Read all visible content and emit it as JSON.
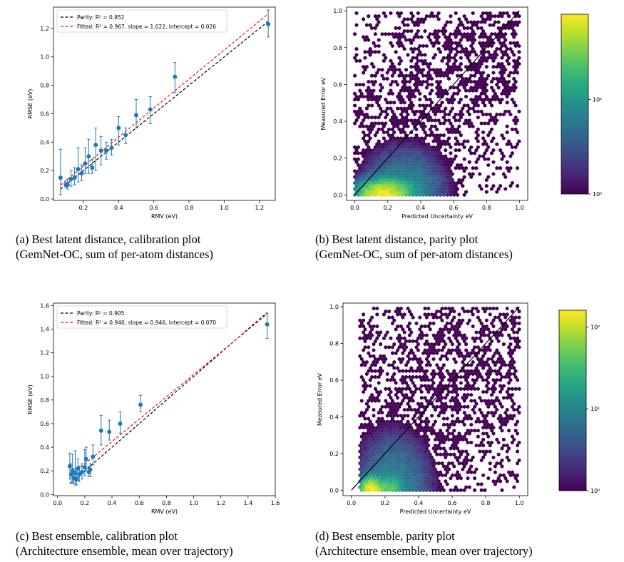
{
  "chart_data": [
    {
      "id": "a",
      "type": "scatter",
      "subtype": "calibration-errorbar",
      "xlabel": "RMV (eV)",
      "ylabel": "RMSE (eV)",
      "xlim": [
        0.03,
        1.29
      ],
      "ylim": [
        -0.01,
        1.35
      ],
      "xticks": [
        0.2,
        0.4,
        0.6,
        0.8,
        1.0,
        1.2
      ],
      "xtick_labels": [
        "0.2",
        "0.4",
        "0.6",
        "0.8",
        "1.0",
        "1.2"
      ],
      "yticks": [
        0.0,
        0.2,
        0.4,
        0.6,
        0.8,
        1.0,
        1.2
      ],
      "ytick_labels": [
        "0.0",
        "0.2",
        "0.4",
        "0.6",
        "0.8",
        "1.0",
        "1.2"
      ],
      "legend_position": "top-left",
      "legend": [
        {
          "label": "Parity: R² = 0.952",
          "color": "#000000",
          "style": "dashed"
        },
        {
          "label": "Fitted: R² = 0.967, slope = 1.022, intercept = 0.026",
          "color": "#e41a1c",
          "style": "dashed"
        }
      ],
      "lines": {
        "parity": {
          "slope": 1.0,
          "intercept": 0.0
        },
        "fitted": {
          "slope": 1.022,
          "intercept": 0.026
        }
      },
      "points": [
        {
          "x": 0.07,
          "y": 0.15,
          "lo": 0.03,
          "hi": 0.35
        },
        {
          "x": 0.1,
          "y": 0.1,
          "lo": 0.08,
          "hi": 0.12
        },
        {
          "x": 0.11,
          "y": 0.1,
          "lo": 0.07,
          "hi": 0.14
        },
        {
          "x": 0.13,
          "y": 0.14,
          "lo": 0.09,
          "hi": 0.2
        },
        {
          "x": 0.15,
          "y": 0.15,
          "lo": 0.1,
          "hi": 0.22
        },
        {
          "x": 0.17,
          "y": 0.21,
          "lo": 0.12,
          "hi": 0.36
        },
        {
          "x": 0.19,
          "y": 0.18,
          "lo": 0.13,
          "hi": 0.24
        },
        {
          "x": 0.21,
          "y": 0.25,
          "lo": 0.18,
          "hi": 0.36
        },
        {
          "x": 0.23,
          "y": 0.3,
          "lo": 0.18,
          "hi": 0.42
        },
        {
          "x": 0.25,
          "y": 0.22,
          "lo": 0.18,
          "hi": 0.28
        },
        {
          "x": 0.27,
          "y": 0.38,
          "lo": 0.2,
          "hi": 0.5
        },
        {
          "x": 0.3,
          "y": 0.34,
          "lo": 0.24,
          "hi": 0.44
        },
        {
          "x": 0.33,
          "y": 0.34,
          "lo": 0.28,
          "hi": 0.4
        },
        {
          "x": 0.36,
          "y": 0.36,
          "lo": 0.31,
          "hi": 0.42
        },
        {
          "x": 0.4,
          "y": 0.5,
          "lo": 0.38,
          "hi": 0.58
        },
        {
          "x": 0.44,
          "y": 0.45,
          "lo": 0.39,
          "hi": 0.5
        },
        {
          "x": 0.5,
          "y": 0.59,
          "lo": 0.5,
          "hi": 0.7
        },
        {
          "x": 0.58,
          "y": 0.63,
          "lo": 0.53,
          "hi": 0.72
        },
        {
          "x": 0.72,
          "y": 0.86,
          "lo": 0.75,
          "hi": 0.96
        },
        {
          "x": 1.25,
          "y": 1.23,
          "lo": 1.14,
          "hi": 1.33
        }
      ]
    },
    {
      "id": "b",
      "type": "heatmap",
      "subtype": "hexbin-parity",
      "xlabel": "Predicted Uncertainty eV",
      "ylabel": "Measured Error eV",
      "xlim": [
        -0.05,
        1.05
      ],
      "ylim": [
        -0.03,
        1.02
      ],
      "xticks": [
        0.0,
        0.2,
        0.4,
        0.6,
        0.8,
        1.0
      ],
      "xtick_labels": [
        "0.0",
        "0.2",
        "0.4",
        "0.6",
        "0.8",
        "1.0"
      ],
      "yticks": [
        0.0,
        0.2,
        0.4,
        0.6,
        0.8,
        1.0
      ],
      "ytick_labels": [
        "0.0",
        "0.2",
        "0.4",
        "0.6",
        "0.8",
        "1.0"
      ],
      "colorbar": {
        "scale": "log",
        "colormap": "viridis",
        "min": 1,
        "max": 80,
        "ticks": [
          1,
          10
        ],
        "tick_labels": [
          "10⁰",
          "10¹"
        ]
      }
    },
    {
      "id": "c",
      "type": "scatter",
      "subtype": "calibration-errorbar",
      "xlabel": "RMV (eV)",
      "ylabel": "RMSE (eV)",
      "xlim": [
        -0.03,
        1.6
      ],
      "ylim": [
        -0.01,
        1.62
      ],
      "xticks": [
        0.0,
        0.2,
        0.4,
        0.6,
        0.8,
        1.0,
        1.2,
        1.4,
        1.6
      ],
      "xtick_labels": [
        "0.0",
        "0.2",
        "0.4",
        "0.6",
        "0.8",
        "1.0",
        "1.2",
        "1.4",
        "1.6"
      ],
      "yticks": [
        0.0,
        0.2,
        0.4,
        0.6,
        0.8,
        1.0,
        1.2,
        1.4,
        1.6
      ],
      "ytick_labels": [
        "0.0",
        "0.2",
        "0.4",
        "0.6",
        "0.8",
        "1.0",
        "1.2",
        "1.4",
        "1.6"
      ],
      "legend_position": "top-left",
      "legend": [
        {
          "label": "Parity: R² = 0.905",
          "color": "#000000",
          "style": "dashed"
        },
        {
          "label": "Fitted: R² = 0.940, slope = 0.946, intercept = 0.070",
          "color": "#e41a1c",
          "style": "dashed"
        }
      ],
      "lines": {
        "parity": {
          "slope": 1.0,
          "intercept": 0.0
        },
        "fitted": {
          "slope": 0.946,
          "intercept": 0.07
        }
      },
      "points": [
        {
          "x": 0.09,
          "y": 0.24,
          "lo": 0.13,
          "hi": 0.35
        },
        {
          "x": 0.1,
          "y": 0.17,
          "lo": 0.1,
          "hi": 0.26
        },
        {
          "x": 0.11,
          "y": 0.2,
          "lo": 0.1,
          "hi": 0.34
        },
        {
          "x": 0.12,
          "y": 0.14,
          "lo": 0.09,
          "hi": 0.22
        },
        {
          "x": 0.13,
          "y": 0.18,
          "lo": 0.08,
          "hi": 0.37
        },
        {
          "x": 0.14,
          "y": 0.13,
          "lo": 0.08,
          "hi": 0.2
        },
        {
          "x": 0.15,
          "y": 0.22,
          "lo": 0.12,
          "hi": 0.3
        },
        {
          "x": 0.16,
          "y": 0.17,
          "lo": 0.11,
          "hi": 0.24
        },
        {
          "x": 0.18,
          "y": 0.19,
          "lo": 0.13,
          "hi": 0.26
        },
        {
          "x": 0.2,
          "y": 0.23,
          "lo": 0.16,
          "hi": 0.38
        },
        {
          "x": 0.21,
          "y": 0.3,
          "lo": 0.2,
          "hi": 0.4
        },
        {
          "x": 0.23,
          "y": 0.19,
          "lo": 0.15,
          "hi": 0.24
        },
        {
          "x": 0.24,
          "y": 0.21,
          "lo": 0.15,
          "hi": 0.26
        },
        {
          "x": 0.26,
          "y": 0.32,
          "lo": 0.25,
          "hi": 0.42
        },
        {
          "x": 0.32,
          "y": 0.54,
          "lo": 0.42,
          "hi": 0.67
        },
        {
          "x": 0.38,
          "y": 0.53,
          "lo": 0.46,
          "hi": 0.63
        },
        {
          "x": 0.46,
          "y": 0.6,
          "lo": 0.52,
          "hi": 0.7
        },
        {
          "x": 0.61,
          "y": 0.76,
          "lo": 0.7,
          "hi": 0.84
        },
        {
          "x": 1.54,
          "y": 1.44,
          "lo": 1.32,
          "hi": 1.53
        }
      ]
    },
    {
      "id": "d",
      "type": "heatmap",
      "subtype": "hexbin-parity",
      "xlabel": "Predicted Uncertainty eV",
      "ylabel": "Measured Error eV",
      "xlim": [
        -0.05,
        1.05
      ],
      "ylim": [
        -0.03,
        1.02
      ],
      "xticks": [
        0.0,
        0.2,
        0.4,
        0.6,
        0.8,
        1.0
      ],
      "xtick_labels": [
        "0.0",
        "0.2",
        "0.4",
        "0.6",
        "0.8",
        "1.0"
      ],
      "yticks": [
        0.0,
        0.2,
        0.4,
        0.6,
        0.8,
        1.0
      ],
      "ytick_labels": [
        "0.0",
        "0.2",
        "0.4",
        "0.6",
        "0.8",
        "1.0"
      ],
      "colorbar": {
        "scale": "log",
        "colormap": "viridis",
        "min": 1,
        "max": 160,
        "ticks": [
          1,
          10,
          100
        ],
        "tick_labels": [
          "10⁰",
          "10¹",
          "10²"
        ]
      }
    }
  ],
  "colors": {
    "point": "#1f77b4",
    "parity_line": "#000000",
    "fitted_line": "#e41a1c",
    "hex_low": "#440154",
    "hex_high": "#fde725"
  },
  "captions": {
    "a": {
      "line1": "(a) Best latent distance, calibration plot",
      "line2": "(GemNet-OC, sum of per-atom distances)"
    },
    "b": {
      "line1": "(b) Best latent distance, parity plot",
      "line2": "(GemNet-OC, sum of per-atom distances)"
    },
    "c": {
      "line1": "(c) Best ensemble, calibration plot",
      "line2": "(Architecture ensemble, mean over trajectory)"
    },
    "d": {
      "line1": "(d) Best ensemble, parity plot",
      "line2": "(Architecture ensemble, mean over trajectory)"
    }
  }
}
